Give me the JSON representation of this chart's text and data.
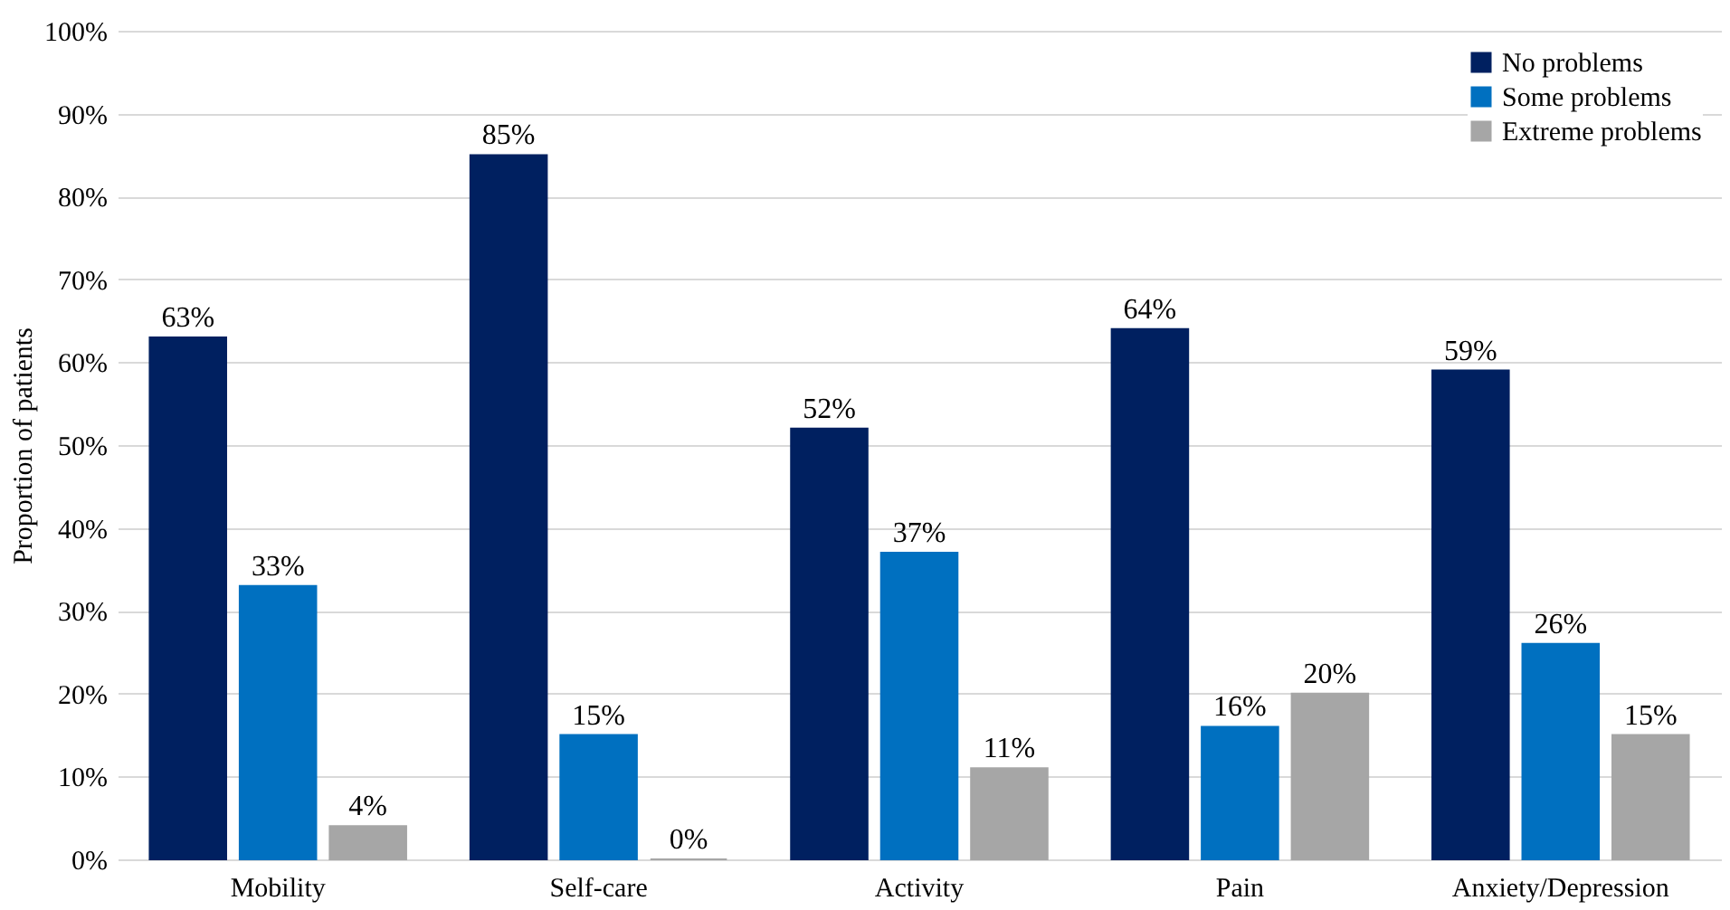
{
  "chart_data": {
    "type": "bar",
    "ylabel": "Proportion of patients",
    "categories": [
      "Mobility",
      "Self-care",
      "Activity",
      "Pain",
      "Anxiety/Depression"
    ],
    "series": [
      {
        "name": "No problems",
        "color": "#002060",
        "values": [
          63,
          85,
          52,
          64,
          59
        ],
        "value_labels": [
          "63%",
          "85%",
          "52%",
          "64%",
          "59%"
        ]
      },
      {
        "name": "Some problems",
        "color": "#0070c0",
        "values": [
          33,
          15,
          37,
          16,
          26
        ],
        "value_labels": [
          "33%",
          "15%",
          "37%",
          "16%",
          "26%"
        ]
      },
      {
        "name": "Extreme problems",
        "color": "#a6a6a6",
        "values": [
          4,
          0,
          11,
          20,
          15
        ],
        "value_labels": [
          "4%",
          "0%",
          "11%",
          "20%",
          "15%"
        ]
      }
    ],
    "ylim": [
      0,
      100
    ],
    "yticks": [
      {
        "value": 0,
        "label": "0%"
      },
      {
        "value": 10,
        "label": "10%"
      },
      {
        "value": 20,
        "label": "20%"
      },
      {
        "value": 30,
        "label": "30%"
      },
      {
        "value": 40,
        "label": "40%"
      },
      {
        "value": 50,
        "label": "50%"
      },
      {
        "value": 60,
        "label": "60%"
      },
      {
        "value": 70,
        "label": "70%"
      },
      {
        "value": 80,
        "label": "80%"
      },
      {
        "value": 90,
        "label": "90%"
      },
      {
        "value": 100,
        "label": "100%"
      }
    ],
    "grid": "y",
    "legend": "top right"
  }
}
